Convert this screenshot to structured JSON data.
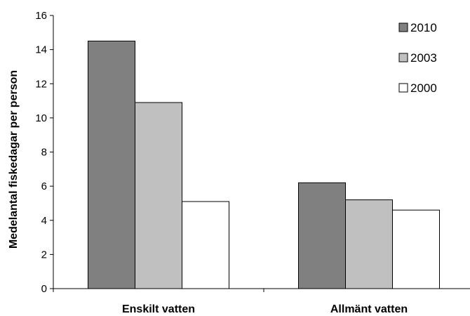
{
  "chart_data": {
    "type": "bar",
    "title": "",
    "xlabel": "",
    "ylabel": "Medelantal fiskedagar per person",
    "categories": [
      "Enskilt vatten",
      "Allmänt vatten"
    ],
    "series": [
      {
        "name": "2010",
        "values": [
          14.5,
          6.2
        ],
        "color": "#808080"
      },
      {
        "name": "2003",
        "values": [
          10.9,
          5.2
        ],
        "color": "#c0c0c0"
      },
      {
        "name": "2000",
        "values": [
          5.1,
          4.6
        ],
        "color": "#ffffff"
      }
    ],
    "ylim": [
      0,
      16
    ],
    "yticks": [
      "0",
      "2",
      "4",
      "6",
      "8",
      "10",
      "12",
      "14",
      "16"
    ],
    "grid": false,
    "legend": "top-right"
  }
}
